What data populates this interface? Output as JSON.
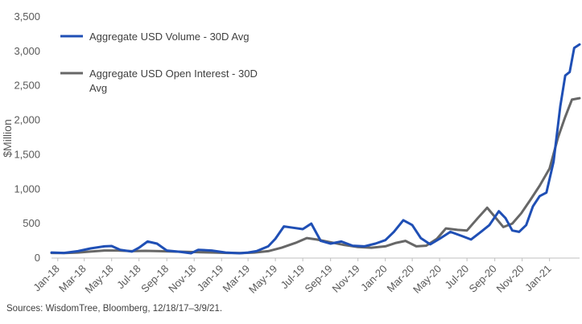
{
  "chart_data": {
    "type": "line",
    "ylabel": "$Million",
    "ylim": [
      0,
      3500
    ],
    "yticks": [
      "0",
      "500",
      "1,000",
      "1,500",
      "2,000",
      "2,500",
      "3,000",
      "3,500"
    ],
    "ytick_values": [
      0,
      500,
      1000,
      1500,
      2000,
      2500,
      3000,
      3500
    ],
    "x_tick_labels": [
      "Jan-18",
      "Mar-18",
      "May-18",
      "Jul-18",
      "Sep-18",
      "Nov-18",
      "Jan-19",
      "Mar-19",
      "May-19",
      "Jul-19",
      "Sep-19",
      "Nov-19",
      "Jan-20",
      "Mar-20",
      "May-20",
      "Jul-20",
      "Sep-20",
      "Nov-20",
      "Jan-21"
    ],
    "x_tick_dates": [
      "2018-01-01",
      "2018-03-01",
      "2018-05-01",
      "2018-07-01",
      "2018-09-01",
      "2018-11-01",
      "2019-01-01",
      "2019-03-01",
      "2019-05-01",
      "2019-07-01",
      "2019-09-01",
      "2019-11-01",
      "2020-01-01",
      "2020-03-01",
      "2020-05-01",
      "2020-07-01",
      "2020-09-01",
      "2020-11-01",
      "2021-01-01"
    ],
    "xlim": [
      "2017-12-18",
      "2021-03-09"
    ],
    "grid": false,
    "legend_position": "top-left",
    "series": [
      {
        "name": "Aggregate USD Volume - 30D Avg",
        "color": "#1F4FB5",
        "x": [
          "2017-12-18",
          "2018-01-15",
          "2018-02-15",
          "2018-03-15",
          "2018-04-15",
          "2018-05-01",
          "2018-05-20",
          "2018-06-15",
          "2018-07-01",
          "2018-07-20",
          "2018-08-10",
          "2018-09-01",
          "2018-10-01",
          "2018-10-25",
          "2018-11-10",
          "2018-12-10",
          "2019-01-10",
          "2019-02-10",
          "2019-03-01",
          "2019-03-20",
          "2019-04-15",
          "2019-05-01",
          "2019-05-20",
          "2019-06-10",
          "2019-07-01",
          "2019-07-20",
          "2019-08-10",
          "2019-09-01",
          "2019-09-25",
          "2019-10-20",
          "2019-11-15",
          "2019-12-10",
          "2020-01-01",
          "2020-01-20",
          "2020-02-10",
          "2020-03-01",
          "2020-03-20",
          "2020-04-10",
          "2020-05-01",
          "2020-05-25",
          "2020-06-20",
          "2020-07-10",
          "2020-08-01",
          "2020-08-20",
          "2020-09-10",
          "2020-09-25",
          "2020-10-10",
          "2020-10-25",
          "2020-11-10",
          "2020-11-25",
          "2020-12-10",
          "2020-12-25",
          "2021-01-10",
          "2021-01-25",
          "2021-02-05",
          "2021-02-15",
          "2021-02-25",
          "2021-03-09"
        ],
        "values": [
          80,
          75,
          100,
          140,
          170,
          175,
          120,
          95,
          150,
          240,
          210,
          110,
          90,
          70,
          120,
          110,
          80,
          70,
          80,
          100,
          170,
          280,
          460,
          440,
          420,
          500,
          250,
          210,
          240,
          180,
          170,
          210,
          260,
          380,
          550,
          480,
          290,
          200,
          280,
          380,
          320,
          270,
          380,
          480,
          680,
          580,
          400,
          380,
          480,
          750,
          900,
          950,
          1400,
          2200,
          2650,
          2700,
          3050,
          3100
        ]
      },
      {
        "name": "Aggregate USD Open Interest - 30D Avg",
        "color": "#676767",
        "x": [
          "2017-12-18",
          "2018-01-15",
          "2018-02-15",
          "2018-03-15",
          "2018-04-15",
          "2018-05-15",
          "2018-06-15",
          "2018-07-15",
          "2018-08-15",
          "2018-09-15",
          "2018-10-15",
          "2018-11-15",
          "2018-12-15",
          "2019-01-15",
          "2019-02-15",
          "2019-03-15",
          "2019-04-15",
          "2019-05-15",
          "2019-06-15",
          "2019-07-10",
          "2019-08-01",
          "2019-09-01",
          "2019-10-01",
          "2019-11-01",
          "2019-12-01",
          "2020-01-01",
          "2020-01-25",
          "2020-02-15",
          "2020-03-10",
          "2020-04-01",
          "2020-04-25",
          "2020-05-15",
          "2020-06-10",
          "2020-07-01",
          "2020-07-25",
          "2020-08-15",
          "2020-09-01",
          "2020-09-20",
          "2020-10-10",
          "2020-10-30",
          "2020-11-20",
          "2020-12-10",
          "2021-01-01",
          "2021-01-20",
          "2021-02-05",
          "2021-02-20",
          "2021-03-09"
        ],
        "values": [
          75,
          72,
          80,
          95,
          110,
          110,
          100,
          105,
          100,
          95,
          90,
          85,
          80,
          75,
          72,
          80,
          100,
          150,
          220,
          290,
          270,
          230,
          190,
          160,
          150,
          170,
          220,
          250,
          170,
          180,
          280,
          430,
          410,
          400,
          580,
          730,
          600,
          450,
          500,
          650,
          850,
          1050,
          1300,
          1750,
          2050,
          2300,
          2320
        ]
      }
    ]
  },
  "source_note": "Sources: WisdomTree, Bloomberg, 12/18/17–3/9/21."
}
